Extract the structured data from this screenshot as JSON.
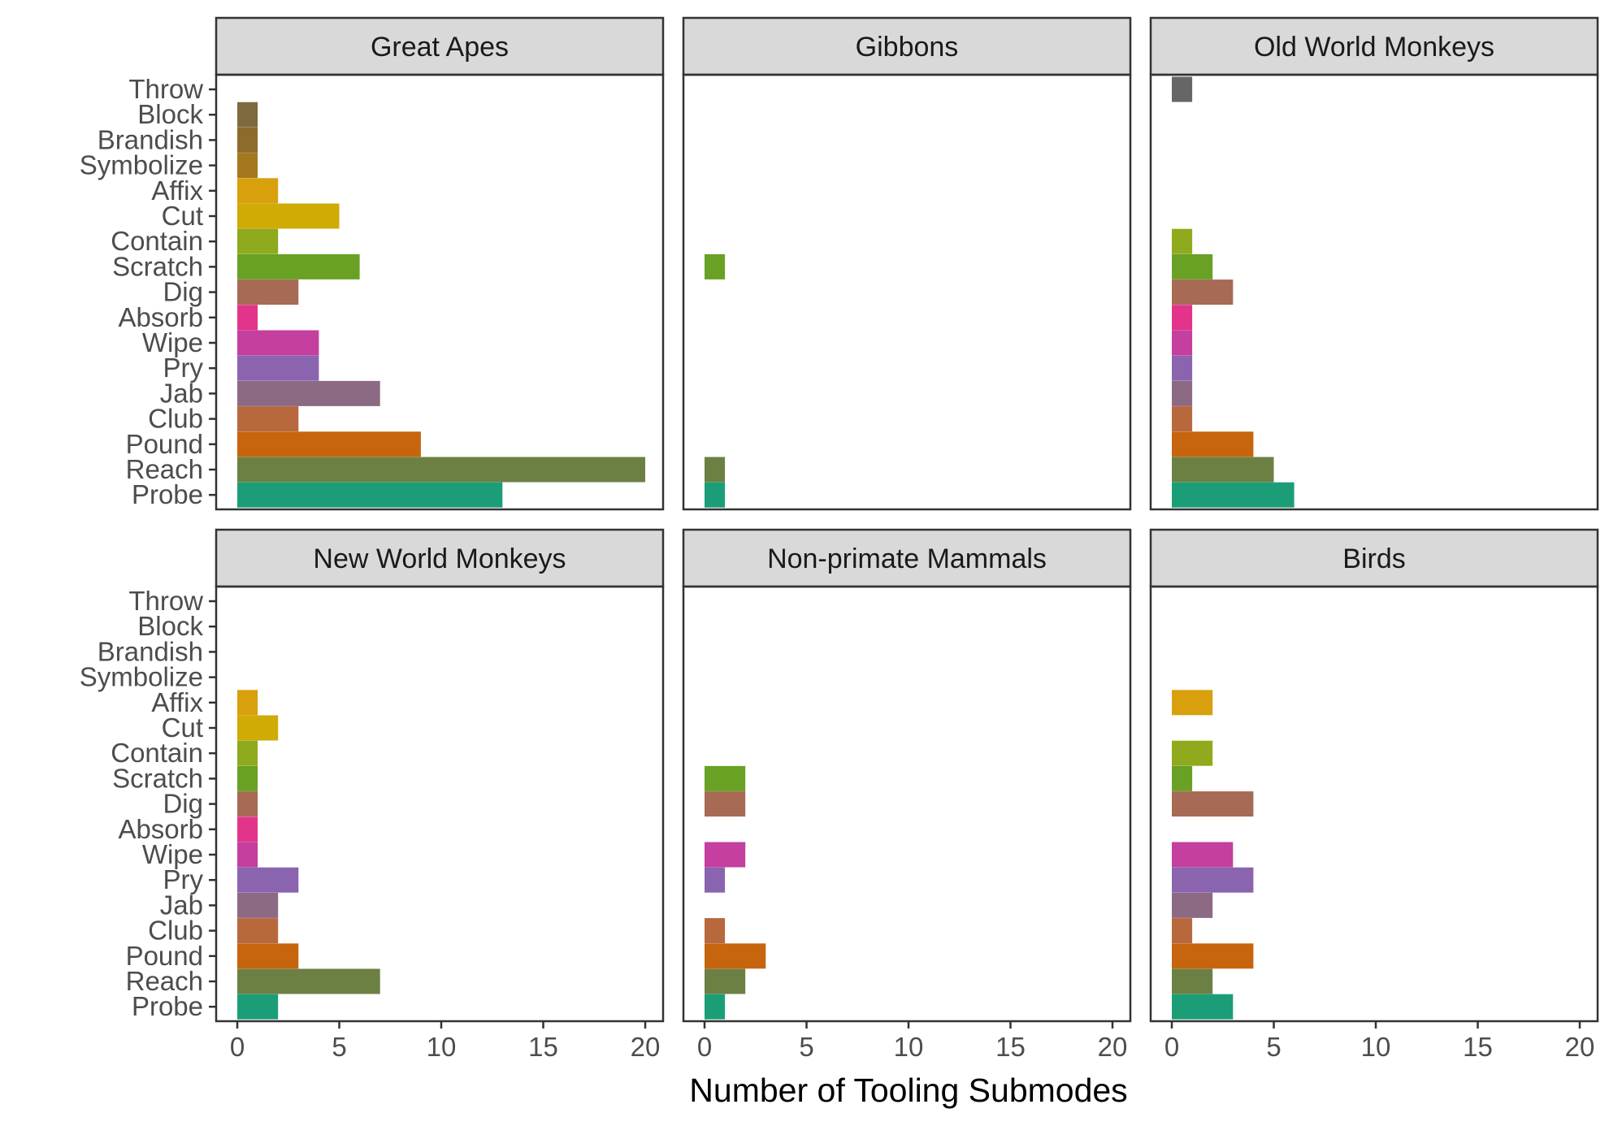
{
  "chart_data": {
    "type": "bar",
    "orientation": "horizontal",
    "facet_layout": "2x3",
    "xlabel": "Number of Tooling Submodes",
    "ylabel": "",
    "title": "",
    "xlim": [
      0,
      20
    ],
    "xticks": [
      0,
      5,
      10,
      15,
      20
    ],
    "grid": false,
    "legend": "none",
    "categories": [
      "Throw",
      "Block",
      "Brandish",
      "Symbolize",
      "Affix",
      "Cut",
      "Contain",
      "Scratch",
      "Dig",
      "Absorb",
      "Wipe",
      "Pry",
      "Jab",
      "Club",
      "Pound",
      "Reach",
      "Probe"
    ],
    "category_colors": {
      "Throw": "#666666",
      "Block": "#7f6a3f",
      "Brandish": "#8d6b2c",
      "Symbolize": "#a5781f",
      "Affix": "#d8a00c",
      "Cut": "#cfab06",
      "Contain": "#8faa1c",
      "Scratch": "#68a124",
      "Dig": "#a66a55",
      "Absorb": "#e2348a",
      "Wipe": "#c43f9e",
      "Pry": "#8b64b0",
      "Jab": "#8d6a84",
      "Club": "#b8683d",
      "Pound": "#c6650e",
      "Reach": "#6c8044",
      "Probe": "#1b9e77"
    },
    "panels": [
      {
        "name": "Great Apes",
        "values": {
          "Throw": 0,
          "Block": 1,
          "Brandish": 1,
          "Symbolize": 1,
          "Affix": 2,
          "Cut": 5,
          "Contain": 2,
          "Scratch": 6,
          "Dig": 3,
          "Absorb": 1,
          "Wipe": 4,
          "Pry": 4,
          "Jab": 7,
          "Club": 3,
          "Pound": 9,
          "Reach": 20,
          "Probe": 13
        }
      },
      {
        "name": "Gibbons",
        "values": {
          "Throw": 0,
          "Block": 0,
          "Brandish": 0,
          "Symbolize": 0,
          "Affix": 0,
          "Cut": 0,
          "Contain": 0,
          "Scratch": 1,
          "Dig": 0,
          "Absorb": 0,
          "Wipe": 0,
          "Pry": 0,
          "Jab": 0,
          "Club": 0,
          "Pound": 0,
          "Reach": 1,
          "Probe": 1
        }
      },
      {
        "name": "Old World Monkeys",
        "values": {
          "Throw": 1,
          "Block": 0,
          "Brandish": 0,
          "Symbolize": 0,
          "Affix": 0,
          "Cut": 0,
          "Contain": 1,
          "Scratch": 2,
          "Dig": 3,
          "Absorb": 1,
          "Wipe": 1,
          "Pry": 1,
          "Jab": 1,
          "Club": 1,
          "Pound": 4,
          "Reach": 5,
          "Probe": 6
        }
      },
      {
        "name": "New World Monkeys",
        "values": {
          "Throw": 0,
          "Block": 0,
          "Brandish": 0,
          "Symbolize": 0,
          "Affix": 1,
          "Cut": 2,
          "Contain": 1,
          "Scratch": 1,
          "Dig": 1,
          "Absorb": 1,
          "Wipe": 1,
          "Pry": 3,
          "Jab": 2,
          "Club": 2,
          "Pound": 3,
          "Reach": 7,
          "Probe": 2
        }
      },
      {
        "name": "Non-primate Mammals",
        "values": {
          "Throw": 0,
          "Block": 0,
          "Brandish": 0,
          "Symbolize": 0,
          "Affix": 0,
          "Cut": 0,
          "Contain": 0,
          "Scratch": 2,
          "Dig": 2,
          "Absorb": 0,
          "Wipe": 2,
          "Pry": 1,
          "Jab": 0,
          "Club": 1,
          "Pound": 3,
          "Reach": 2,
          "Probe": 1
        }
      },
      {
        "name": "Birds",
        "values": {
          "Throw": 0,
          "Block": 0,
          "Brandish": 0,
          "Symbolize": 0,
          "Affix": 2,
          "Cut": 0,
          "Contain": 2,
          "Scratch": 1,
          "Dig": 4,
          "Absorb": 0,
          "Wipe": 3,
          "Pry": 4,
          "Jab": 2,
          "Club": 1,
          "Pound": 4,
          "Reach": 2,
          "Probe": 3
        }
      }
    ]
  }
}
